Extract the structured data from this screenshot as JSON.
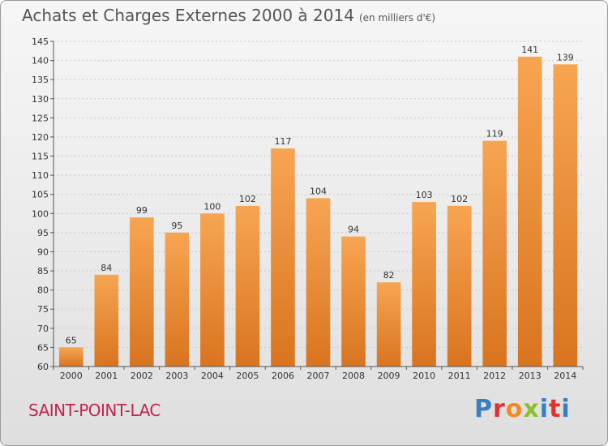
{
  "header": {
    "title": "Achats et Charges Externes 2000 à 2014",
    "subtitle": "(en milliers d'€)"
  },
  "footer": {
    "place": "SAINT-POINT-LAC",
    "logo": "Proxiti",
    "logo_colors": [
      "#3a7ec2",
      "#e0322f",
      "#f08a24",
      "#8cbf2a",
      "#3a7ec2",
      "#e0322f",
      "#3a7ec2"
    ]
  },
  "chart_data": {
    "type": "bar",
    "title": "Achats et Charges Externes 2000 à 2014",
    "subtitle": "(en milliers d'€)",
    "categories": [
      "2000",
      "2001",
      "2002",
      "2003",
      "2004",
      "2005",
      "2006",
      "2007",
      "2008",
      "2009",
      "2010",
      "2011",
      "2012",
      "2013",
      "2014"
    ],
    "values": [
      65,
      84,
      99,
      95,
      100,
      102,
      117,
      104,
      94,
      82,
      103,
      102,
      119,
      141,
      139
    ],
    "ylim": [
      60,
      145
    ],
    "yticks": [
      60,
      65,
      70,
      75,
      80,
      85,
      90,
      95,
      100,
      105,
      110,
      115,
      120,
      125,
      130,
      135,
      140,
      145
    ],
    "grid": true,
    "bar_color_top": "#f7a552",
    "bar_color_bottom": "#d9741f"
  }
}
